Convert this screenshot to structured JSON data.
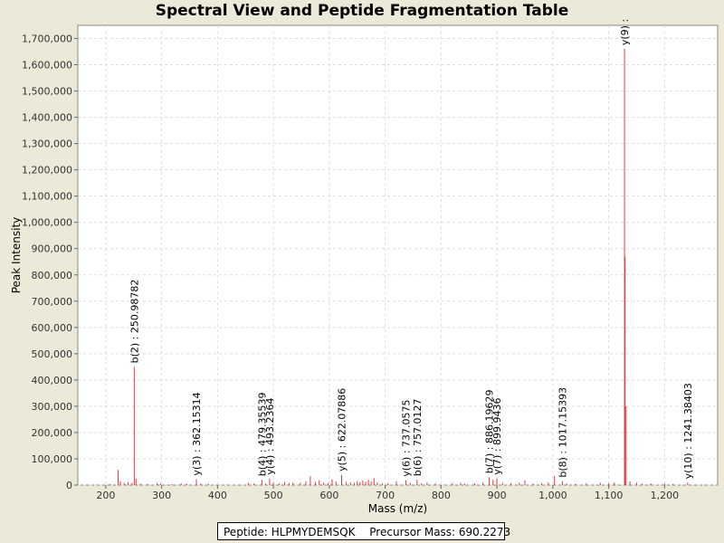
{
  "chart_data": {
    "type": "bar",
    "title": "Spectral View and Peptide Fragmentation Table",
    "xlabel": "Mass (m/z)",
    "ylabel": "Peak Intensity",
    "xlim": [
      150,
      1295
    ],
    "ylim": [
      0,
      1750000
    ],
    "x_ticks": [
      200,
      300,
      400,
      500,
      600,
      700,
      800,
      900,
      1000,
      1100,
      1200
    ],
    "x_tick_labels": [
      "200",
      "300",
      "400",
      "500",
      "600",
      "700",
      "800",
      "900",
      "1,000",
      "1,100",
      "1,200"
    ],
    "y_ticks": [
      0,
      100000,
      200000,
      300000,
      400000,
      500000,
      600000,
      700000,
      800000,
      900000,
      1000000,
      1100000,
      1200000,
      1300000,
      1400000,
      1500000,
      1600000,
      1700000
    ],
    "y_tick_labels": [
      "0",
      "100,000",
      "200,000",
      "300,000",
      "400,000",
      "500,000",
      "600,000",
      "700,000",
      "800,000",
      "900,000",
      "1,000,000",
      "1,100,000",
      "1,200,000",
      "1,300,000",
      "1,400,000",
      "1,500,000",
      "1,600,000",
      "1,700,000"
    ],
    "grid": true,
    "peak_color": "#e8383c",
    "peaks": [
      {
        "mz": 208,
        "intensity": 4000
      },
      {
        "mz": 222,
        "intensity": 58000
      },
      {
        "mz": 226,
        "intensity": 15000
      },
      {
        "mz": 233,
        "intensity": 8000
      },
      {
        "mz": 240,
        "intensity": 12000
      },
      {
        "mz": 247,
        "intensity": 9000
      },
      {
        "mz": 250.98782,
        "intensity": 450000
      },
      {
        "mz": 254,
        "intensity": 25000
      },
      {
        "mz": 262,
        "intensity": 6000
      },
      {
        "mz": 275,
        "intensity": 4000
      },
      {
        "mz": 292,
        "intensity": 8000
      },
      {
        "mz": 298,
        "intensity": 6000
      },
      {
        "mz": 318,
        "intensity": 3000
      },
      {
        "mz": 335,
        "intensity": 7000
      },
      {
        "mz": 345,
        "intensity": 5000
      },
      {
        "mz": 362.15314,
        "intensity": 22000
      },
      {
        "mz": 370,
        "intensity": 6000
      },
      {
        "mz": 384,
        "intensity": 4000
      },
      {
        "mz": 455,
        "intensity": 9000
      },
      {
        "mz": 465,
        "intensity": 6000
      },
      {
        "mz": 479.35539,
        "intensity": 20000
      },
      {
        "mz": 486,
        "intensity": 6000
      },
      {
        "mz": 493.2364,
        "intensity": 25000
      },
      {
        "mz": 500,
        "intensity": 9000
      },
      {
        "mz": 510,
        "intensity": 7000
      },
      {
        "mz": 520,
        "intensity": 12000
      },
      {
        "mz": 528,
        "intensity": 8000
      },
      {
        "mz": 535,
        "intensity": 10000
      },
      {
        "mz": 548,
        "intensity": 9000
      },
      {
        "mz": 558,
        "intensity": 14000
      },
      {
        "mz": 566,
        "intensity": 34000
      },
      {
        "mz": 575,
        "intensity": 12000
      },
      {
        "mz": 582,
        "intensity": 18000
      },
      {
        "mz": 590,
        "intensity": 10000
      },
      {
        "mz": 598,
        "intensity": 8000
      },
      {
        "mz": 605,
        "intensity": 22000
      },
      {
        "mz": 612,
        "intensity": 14000
      },
      {
        "mz": 622.07886,
        "intensity": 38000
      },
      {
        "mz": 630,
        "intensity": 12000
      },
      {
        "mz": 638,
        "intensity": 10000
      },
      {
        "mz": 645,
        "intensity": 9000
      },
      {
        "mz": 650,
        "intensity": 15000
      },
      {
        "mz": 655,
        "intensity": 11000
      },
      {
        "mz": 660,
        "intensity": 17000
      },
      {
        "mz": 665,
        "intensity": 13000
      },
      {
        "mz": 670,
        "intensity": 20000
      },
      {
        "mz": 675,
        "intensity": 15000
      },
      {
        "mz": 680,
        "intensity": 26000
      },
      {
        "mz": 686,
        "intensity": 10000
      },
      {
        "mz": 695,
        "intensity": 6000
      },
      {
        "mz": 705,
        "intensity": 8000
      },
      {
        "mz": 720,
        "intensity": 14000
      },
      {
        "mz": 737.0575,
        "intensity": 18000
      },
      {
        "mz": 745,
        "intensity": 9000
      },
      {
        "mz": 757.0127,
        "intensity": 20000
      },
      {
        "mz": 765,
        "intensity": 7000
      },
      {
        "mz": 775,
        "intensity": 10000
      },
      {
        "mz": 790,
        "intensity": 6000
      },
      {
        "mz": 820,
        "intensity": 8000
      },
      {
        "mz": 835,
        "intensity": 9000
      },
      {
        "mz": 842,
        "intensity": 6000
      },
      {
        "mz": 860,
        "intensity": 7000
      },
      {
        "mz": 875,
        "intensity": 10000
      },
      {
        "mz": 886.19629,
        "intensity": 30000
      },
      {
        "mz": 893,
        "intensity": 20000
      },
      {
        "mz": 899.9436,
        "intensity": 25000
      },
      {
        "mz": 910,
        "intensity": 9000
      },
      {
        "mz": 925,
        "intensity": 7000
      },
      {
        "mz": 940,
        "intensity": 9000
      },
      {
        "mz": 950,
        "intensity": 18000
      },
      {
        "mz": 965,
        "intensity": 6000
      },
      {
        "mz": 980,
        "intensity": 8000
      },
      {
        "mz": 992,
        "intensity": 10000
      },
      {
        "mz": 1003,
        "intensity": 35000
      },
      {
        "mz": 1017.15393,
        "intensity": 15000
      },
      {
        "mz": 1025,
        "intensity": 6000
      },
      {
        "mz": 1040,
        "intensity": 5000
      },
      {
        "mz": 1060,
        "intensity": 8000
      },
      {
        "mz": 1085,
        "intensity": 9000
      },
      {
        "mz": 1100,
        "intensity": 6000
      },
      {
        "mz": 1110,
        "intensity": 10000
      },
      {
        "mz": 1128.3,
        "intensity": 1660000
      },
      {
        "mz": 1129.2,
        "intensity": 870000
      },
      {
        "mz": 1131,
        "intensity": 300000
      },
      {
        "mz": 1138,
        "intensity": 14000
      },
      {
        "mz": 1150,
        "intensity": 9000
      },
      {
        "mz": 1160,
        "intensity": 6000
      },
      {
        "mz": 1175,
        "intensity": 7000
      },
      {
        "mz": 1200,
        "intensity": 6000
      },
      {
        "mz": 1215,
        "intensity": 4000
      },
      {
        "mz": 1241.38403,
        "intensity": 9000
      }
    ],
    "annotations": [
      {
        "label": "b(2) : 250.98782",
        "mz": 250.98782,
        "intensity": 450000
      },
      {
        "label": "y(3) : 362.15314",
        "mz": 362.15314,
        "intensity": 22000
      },
      {
        "label": "b(4) : 479.35539",
        "mz": 479.35539,
        "intensity": 20000
      },
      {
        "label": "y(4) : 493.2364",
        "mz": 493.2364,
        "intensity": 25000
      },
      {
        "label": "y(5) : 622.07886",
        "mz": 622.07886,
        "intensity": 38000
      },
      {
        "label": "y(6) : 737.0575",
        "mz": 737.0575,
        "intensity": 18000
      },
      {
        "label": "b(6) : 757.0127",
        "mz": 757.0127,
        "intensity": 20000
      },
      {
        "label": "b(7) : 886.19629",
        "mz": 886.19629,
        "intensity": 30000
      },
      {
        "label": "y(7) : 899.9436",
        "mz": 899.9436,
        "intensity": 25000
      },
      {
        "label": "b(8) : 1017.15393",
        "mz": 1017.15393,
        "intensity": 15000
      },
      {
        "label": "y(9) :",
        "mz": 1128.3,
        "intensity": 1660000
      },
      {
        "label": "y(10) : 1241.38403",
        "mz": 1241.38403,
        "intensity": 9000
      }
    ]
  },
  "peptide": {
    "label": "Peptide: HLPMYDEMSQK",
    "precursor": "Precursor Mass: 690.2273"
  }
}
